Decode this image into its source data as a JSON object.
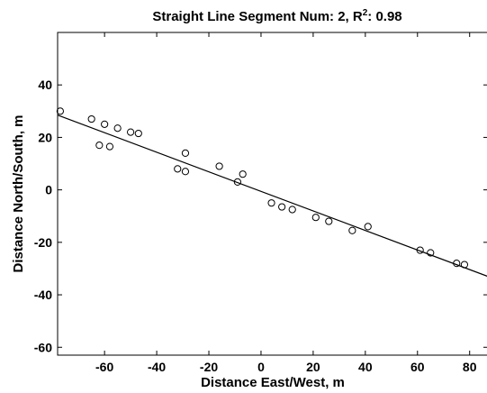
{
  "chart_data": {
    "type": "scatter",
    "title_main": "Straight Line Segment Num: 2, R",
    "title_sup": "2",
    "title_tail": ": 0.98",
    "xlabel": "Distance East/West, m",
    "ylabel": "Distance North/South, m",
    "xlim": [
      -78,
      87
    ],
    "ylim": [
      -63,
      60
    ],
    "xticks": [
      -60,
      -40,
      -20,
      0,
      20,
      40,
      60,
      80
    ],
    "yticks": [
      -60,
      -40,
      -20,
      0,
      20,
      40
    ],
    "grid": false,
    "points": [
      {
        "x": -77,
        "y": 30
      },
      {
        "x": -65,
        "y": 27
      },
      {
        "x": -60,
        "y": 25
      },
      {
        "x": -55,
        "y": 23.5
      },
      {
        "x": -50,
        "y": 22
      },
      {
        "x": -47,
        "y": 21.5
      },
      {
        "x": -62,
        "y": 17
      },
      {
        "x": -58,
        "y": 16.5
      },
      {
        "x": -29,
        "y": 14
      },
      {
        "x": -32,
        "y": 8
      },
      {
        "x": -29,
        "y": 7
      },
      {
        "x": -16,
        "y": 9
      },
      {
        "x": -7,
        "y": 6
      },
      {
        "x": -9,
        "y": 3
      },
      {
        "x": 4,
        "y": -5
      },
      {
        "x": 8,
        "y": -6.5
      },
      {
        "x": 12,
        "y": -7.5
      },
      {
        "x": 21,
        "y": -10.5
      },
      {
        "x": 26,
        "y": -12
      },
      {
        "x": 35,
        "y": -15.5
      },
      {
        "x": 41,
        "y": -14
      },
      {
        "x": 61,
        "y": -23
      },
      {
        "x": 65,
        "y": -24
      },
      {
        "x": 75,
        "y": -28
      },
      {
        "x": 78,
        "y": -28.5
      }
    ],
    "fit_line": [
      {
        "x": -78,
        "y": 28.5
      },
      {
        "x": 87,
        "y": -33
      }
    ]
  }
}
